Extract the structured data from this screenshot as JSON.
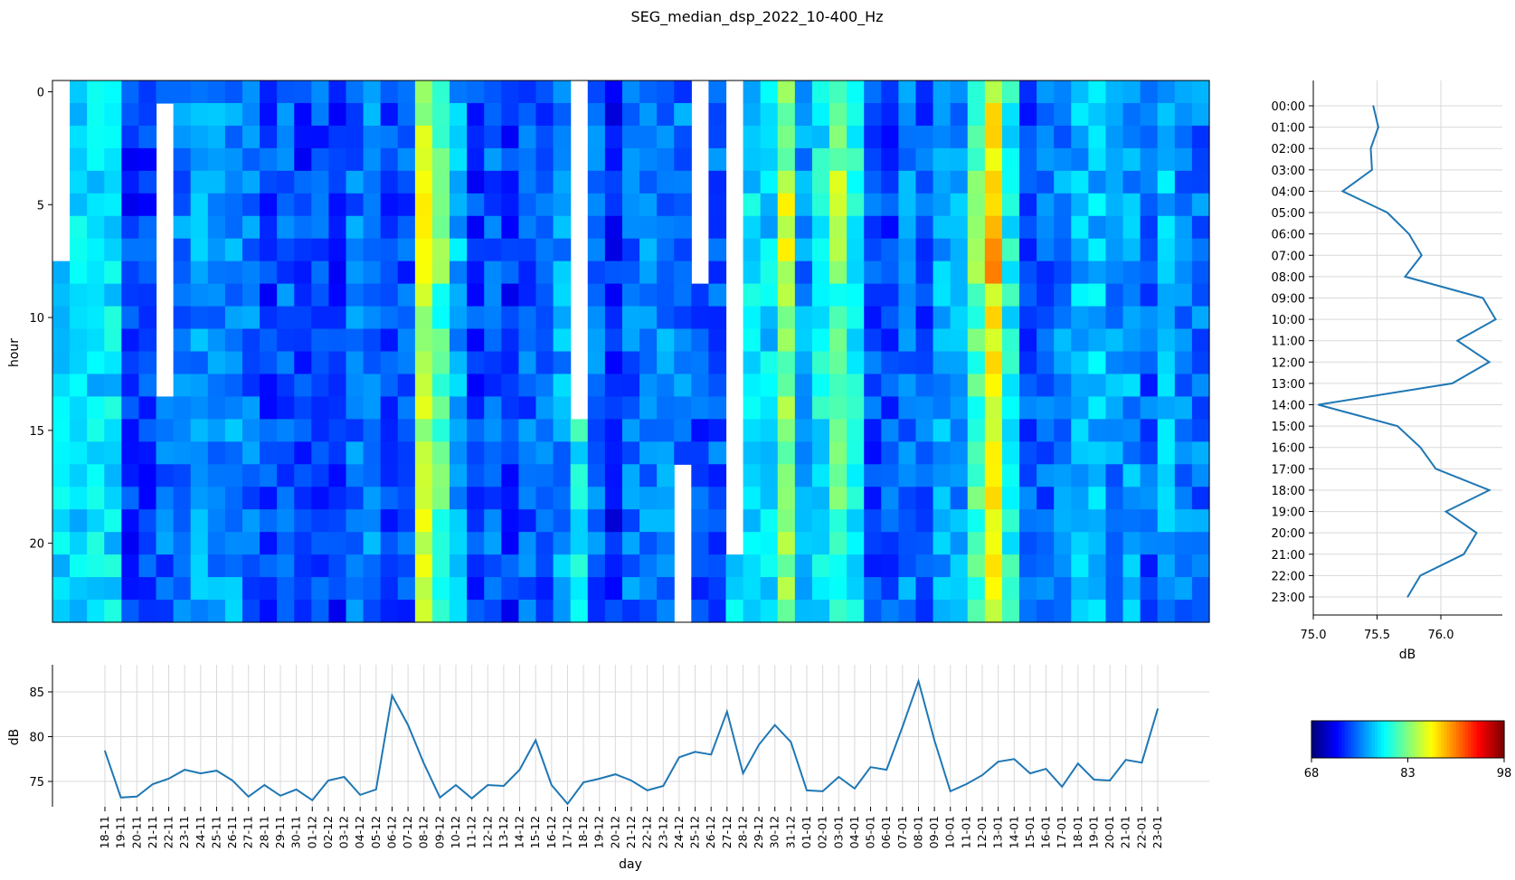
{
  "title": "SEG_median_dsp_2022_10-400_Hz",
  "chart_data": [
    {
      "type": "heatmap",
      "name": "hour-by-day spectrogram",
      "ylabel": "hour",
      "yticks": [
        0,
        5,
        10,
        15,
        20
      ],
      "hours": 24,
      "day_columns": 67,
      "color_range": [
        68,
        98
      ],
      "note": "values in dB; null = no data (white)",
      "values_approx_from_column_profile": true
    },
    {
      "type": "line",
      "name": "hourly median profile",
      "xlabel": "dB",
      "xlim": [
        75.0,
        76.5
      ],
      "xticks": [
        "75.0",
        "75.5",
        "76.0"
      ],
      "hours": [
        "00:00",
        "01:00",
        "02:00",
        "03:00",
        "04:00",
        "05:00",
        "06:00",
        "07:00",
        "08:00",
        "09:00",
        "10:00",
        "11:00",
        "12:00",
        "13:00",
        "14:00",
        "15:00",
        "16:00",
        "17:00",
        "18:00",
        "19:00",
        "20:00",
        "21:00",
        "22:00",
        "23:00"
      ],
      "values": [
        75.47,
        75.51,
        75.45,
        75.46,
        75.23,
        75.58,
        75.75,
        75.85,
        75.72,
        76.33,
        76.43,
        76.13,
        76.38,
        76.09,
        75.04,
        75.66,
        75.84,
        75.96,
        76.38,
        76.04,
        76.28,
        76.18,
        75.84,
        75.74
      ]
    },
    {
      "type": "line",
      "name": "daily median",
      "xlabel": "day",
      "ylabel": "dB",
      "ylim": [
        72,
        87
      ],
      "yticks": [
        75,
        80,
        85
      ],
      "categories": [
        "18-11",
        "19-11",
        "20-11",
        "21-11",
        "22-11",
        "23-11",
        "24-11",
        "25-11",
        "26-11",
        "27-11",
        "28-11",
        "29-11",
        "30-11",
        "01-12",
        "02-12",
        "03-12",
        "04-12",
        "05-12",
        "06-12",
        "07-12",
        "08-12",
        "09-12",
        "10-12",
        "11-12",
        "12-12",
        "13-12",
        "14-12",
        "15-12",
        "16-12",
        "17-12",
        "18-12",
        "19-12",
        "20-12",
        "21-12",
        "22-12",
        "23-12",
        "24-12",
        "25-12",
        "26-12",
        "27-12",
        "28-12",
        "29-12",
        "30-12",
        "31-12",
        "01-01",
        "02-01",
        "03-01",
        "04-01",
        "05-01",
        "06-01",
        "07-01",
        "08-01",
        "09-01",
        "10-01",
        "11-01",
        "12-01",
        "13-01",
        "14-01",
        "15-01",
        "16-01",
        "17-01",
        "18-01",
        "19-01",
        "20-01",
        "21-01",
        "22-01",
        "23-01"
      ],
      "values": [
        78.4,
        73.2,
        73.3,
        74.7,
        75.3,
        76.3,
        75.9,
        76.2,
        75.1,
        73.3,
        74.6,
        73.4,
        74.1,
        72.9,
        75.1,
        75.5,
        73.5,
        74.1,
        84.6,
        81.3,
        77.0,
        73.2,
        74.6,
        73.1,
        74.6,
        74.5,
        76.3,
        79.6,
        74.6,
        72.5,
        74.9,
        75.3,
        75.8,
        75.1,
        74.0,
        74.5,
        77.7,
        78.3,
        78.0,
        82.8,
        75.9,
        79.1,
        81.3,
        79.4,
        74.0,
        73.9,
        75.5,
        74.2,
        76.6,
        76.3,
        81.1,
        86.2,
        79.6,
        73.9,
        74.7,
        75.7,
        77.2,
        77.5,
        75.9,
        76.4,
        74.4,
        77.0,
        75.2,
        75.1,
        77.4,
        77.1,
        83.1
      ]
    },
    {
      "type": "colorbar",
      "name": "colorbar",
      "ticks": [
        "68",
        "83",
        "98"
      ],
      "range": [
        68,
        98
      ]
    }
  ]
}
